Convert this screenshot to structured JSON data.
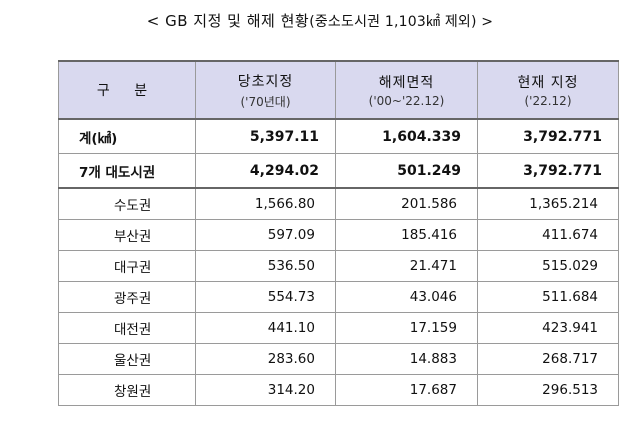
{
  "title": {
    "main": "< GB 지정 및 해제 현황",
    "sub": "(중소도시권 1,103㎢ 제외) >"
  },
  "table": {
    "header": {
      "category": "구 분",
      "columns": [
        {
          "label": "당초지정",
          "sub": "('70년대)"
        },
        {
          "label": "해제면적",
          "sub": "('00~'22.12)"
        },
        {
          "label": "현재 지정",
          "sub": "('22.12)"
        }
      ]
    },
    "total": {
      "name": "계(㎢)",
      "values": [
        "5,397.11",
        "1,604.339",
        "3,792.771"
      ]
    },
    "metro": {
      "name": "7개 대도시권",
      "values": [
        "4,294.02",
        "501.249",
        "3,792.771"
      ]
    },
    "rows": [
      {
        "name": "수도권",
        "values": [
          "1,566.80",
          "201.586",
          "1,365.214"
        ]
      },
      {
        "name": "부산권",
        "values": [
          "597.09",
          "185.416",
          "411.674"
        ]
      },
      {
        "name": "대구권",
        "values": [
          "536.50",
          "21.471",
          "515.029"
        ]
      },
      {
        "name": "광주권",
        "values": [
          "554.73",
          "43.046",
          "511.684"
        ]
      },
      {
        "name": "대전권",
        "values": [
          "441.10",
          "17.159",
          "423.941"
        ]
      },
      {
        "name": "울산권",
        "values": [
          "283.60",
          "14.883",
          "268.717"
        ]
      },
      {
        "name": "창원권",
        "values": [
          "314.20",
          "17.687",
          "296.513"
        ]
      }
    ]
  },
  "colors": {
    "header_background": "#d9d9ef",
    "rule": "#666666"
  }
}
